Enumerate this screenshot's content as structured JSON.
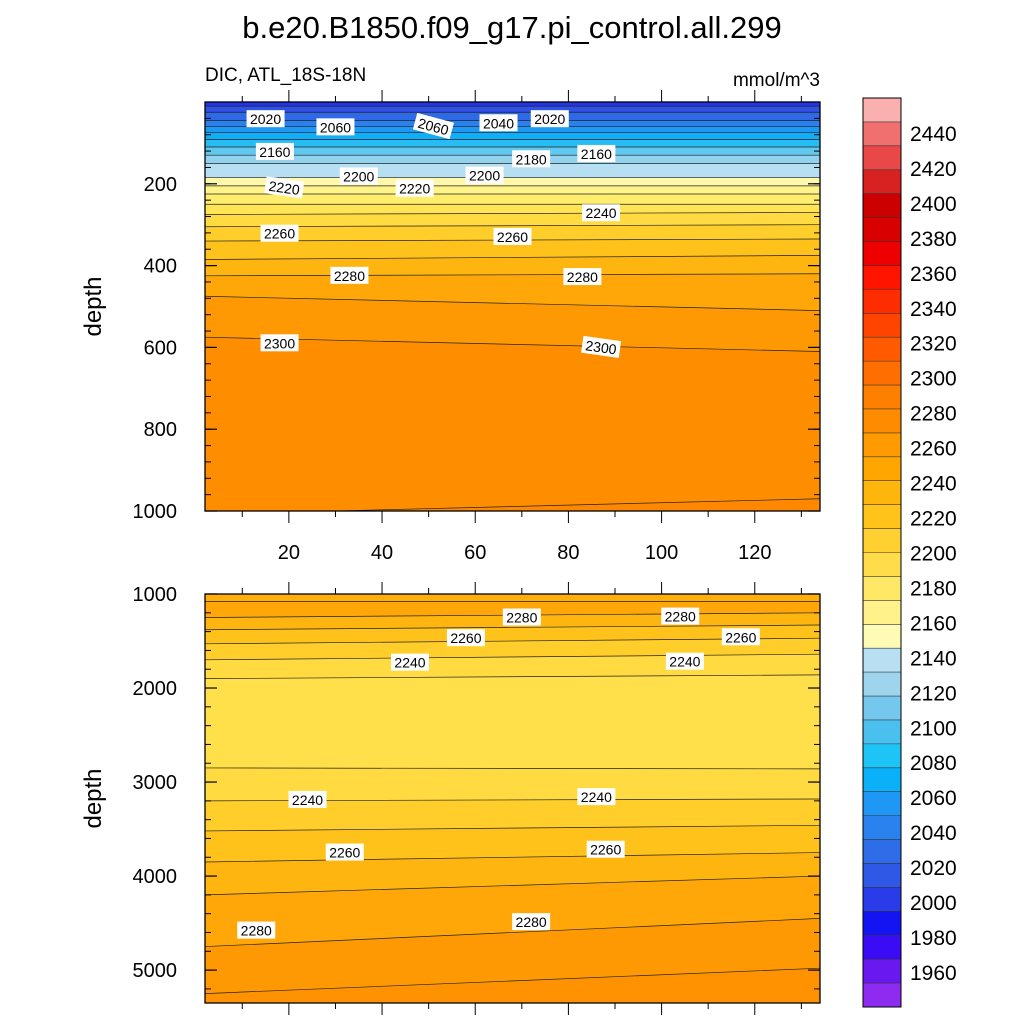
{
  "title": "b.e20.B1850.f09_g17.pi_control.all.299",
  "subtitle_left": "DIC, ATL_18S-18N",
  "subtitle_right": "mmol/m^3",
  "chart_data": [
    {
      "type": "contour",
      "panel": "upper",
      "ylabel": "depth",
      "xlim": [
        2,
        134
      ],
      "ylim": [
        1000,
        0
      ],
      "x_ticks": [
        20,
        40,
        60,
        80,
        100,
        120
      ],
      "y_ticks": [
        200,
        400,
        600,
        800,
        1000
      ],
      "contours": [
        {
          "level": 2020,
          "y": [
            10,
            10
          ]
        },
        {
          "level": 2040,
          "y": [
            25,
            25
          ]
        },
        {
          "level": 2060,
          "y": [
            45,
            45
          ]
        },
        {
          "level": 2080,
          "y": [
            60,
            60
          ]
        },
        {
          "level": 2100,
          "y": [
            75,
            75
          ]
        },
        {
          "level": 2120,
          "y": [
            92,
            92
          ]
        },
        {
          "level": 2140,
          "y": [
            110,
            110
          ]
        },
        {
          "level": 2160,
          "y": [
            130,
            130
          ]
        },
        {
          "level": 2180,
          "y": [
            150,
            150
          ]
        },
        {
          "level": 2200,
          "y": [
            185,
            185
          ]
        },
        {
          "level": 2210,
          "y": [
            205,
            205
          ]
        },
        {
          "level": 2220,
          "y": [
            225,
            225
          ]
        },
        {
          "level": 2230,
          "y": [
            250,
            250
          ]
        },
        {
          "level": 2240,
          "y": [
            275,
            270
          ]
        },
        {
          "level": 2250,
          "y": [
            305,
            300
          ]
        },
        {
          "level": 2260,
          "y": [
            340,
            335
          ]
        },
        {
          "level": 2270,
          "y": [
            385,
            375
          ]
        },
        {
          "level": 2280,
          "y": [
            425,
            420
          ]
        },
        {
          "level": 2290,
          "y": [
            475,
            510
          ]
        },
        {
          "level": 2300,
          "y": [
            575,
            610
          ]
        },
        {
          "level": 2310,
          "y": [
            1008,
            970
          ]
        }
      ],
      "labels": [
        {
          "text": "2020",
          "x": 15,
          "y": 42,
          "angle": 0
        },
        {
          "text": "2060",
          "x": 30,
          "y": 62,
          "angle": 0
        },
        {
          "text": "2060",
          "x": 51,
          "y": 60,
          "angle": 15
        },
        {
          "text": "2040",
          "x": 65,
          "y": 52,
          "angle": 0
        },
        {
          "text": "2020",
          "x": 76,
          "y": 42,
          "angle": 0
        },
        {
          "text": "2160",
          "x": 17,
          "y": 122,
          "angle": 0
        },
        {
          "text": "2180",
          "x": 72,
          "y": 140,
          "angle": 0
        },
        {
          "text": "2160",
          "x": 86,
          "y": 127,
          "angle": 0
        },
        {
          "text": "2200",
          "x": 35,
          "y": 182,
          "angle": 0
        },
        {
          "text": "2200",
          "x": 62,
          "y": 180,
          "angle": 0
        },
        {
          "text": "2220",
          "x": 19,
          "y": 210,
          "angle": 8
        },
        {
          "text": "2220",
          "x": 47,
          "y": 212,
          "angle": 0
        },
        {
          "text": "2240",
          "x": 87,
          "y": 272,
          "angle": 0
        },
        {
          "text": "2260",
          "x": 18,
          "y": 322,
          "angle": 0
        },
        {
          "text": "2260",
          "x": 68,
          "y": 330,
          "angle": 0
        },
        {
          "text": "2280",
          "x": 33,
          "y": 425,
          "angle": 0
        },
        {
          "text": "2280",
          "x": 83,
          "y": 428,
          "angle": 0
        },
        {
          "text": "2300",
          "x": 18,
          "y": 590,
          "angle": 0
        },
        {
          "text": "2300",
          "x": 87,
          "y": 600,
          "angle": 8
        }
      ]
    },
    {
      "type": "contour",
      "panel": "lower",
      "ylabel": "depth",
      "xlim": [
        2,
        134
      ],
      "ylim": [
        5350,
        1000
      ],
      "y_ticks": [
        1000,
        2000,
        3000,
        4000,
        5000
      ],
      "contours": [
        {
          "level": 2290,
          "y": [
            1080,
            1080
          ]
        },
        {
          "level": 2280,
          "y": [
            1250,
            1200
          ]
        },
        {
          "level": 2270,
          "y": [
            1380,
            1330
          ]
        },
        {
          "level": 2260,
          "y": [
            1530,
            1470
          ]
        },
        {
          "level": 2250,
          "y": [
            1700,
            1640
          ]
        },
        {
          "level": 2240,
          "y": [
            1900,
            1860
          ]
        },
        {
          "level": 2240,
          "y": [
            2850,
            2860
          ]
        },
        {
          "level": 2250,
          "y": [
            3200,
            3180
          ]
        },
        {
          "level": 2260,
          "y": [
            3520,
            3460
          ]
        },
        {
          "level": 2270,
          "y": [
            3850,
            3750
          ]
        },
        {
          "level": 2280,
          "y": [
            4200,
            4000
          ]
        },
        {
          "level": 2290,
          "y": [
            4750,
            4450
          ]
        },
        {
          "level": 2300,
          "y": [
            5250,
            4980
          ]
        }
      ],
      "labels": [
        {
          "text": "2280",
          "x": 70,
          "y": 1250,
          "angle": 0
        },
        {
          "text": "2280",
          "x": 104,
          "y": 1240,
          "angle": 0
        },
        {
          "text": "2260",
          "x": 58,
          "y": 1470,
          "angle": 0
        },
        {
          "text": "2260",
          "x": 117,
          "y": 1460,
          "angle": 0
        },
        {
          "text": "2240",
          "x": 46,
          "y": 1730,
          "angle": 0
        },
        {
          "text": "2240",
          "x": 105,
          "y": 1720,
          "angle": 0
        },
        {
          "text": "2240",
          "x": 24,
          "y": 3190,
          "angle": 0
        },
        {
          "text": "2240",
          "x": 86,
          "y": 3160,
          "angle": 0
        },
        {
          "text": "2260",
          "x": 32,
          "y": 3750,
          "angle": 0
        },
        {
          "text": "2260",
          "x": 88,
          "y": 3720,
          "angle": 0
        },
        {
          "text": "2280",
          "x": 13,
          "y": 4580,
          "angle": 0
        },
        {
          "text": "2280",
          "x": 72,
          "y": 4490,
          "angle": 0
        }
      ]
    }
  ],
  "colorbar": {
    "levels": [
      1960,
      1980,
      2000,
      2020,
      2040,
      2060,
      2080,
      2100,
      2120,
      2140,
      2160,
      2180,
      2200,
      2220,
      2240,
      2260,
      2280,
      2300,
      2320,
      2340,
      2360,
      2380,
      2400,
      2420,
      2440
    ],
    "colors": [
      "#8e2bf0",
      "#6a18f0",
      "#3a0cf6",
      "#1414f2",
      "#2a3bea",
      "#2f58e6",
      "#2f6de8",
      "#2a82ee",
      "#1e98f4",
      "#0ab0f8",
      "#1ec4f6",
      "#4ac0ef",
      "#74c8ee",
      "#9ed4ee",
      "#b8dff2",
      "#fdfbb4",
      "#fff28a",
      "#ffe866",
      "#ffdd4a",
      "#ffd030",
      "#ffc31a",
      "#ffb60c",
      "#ffa600",
      "#ff9a00",
      "#ff8c00",
      "#ff7f00",
      "#ff6e00",
      "#ff5a00",
      "#ff4400",
      "#ff2c00",
      "#ff1400",
      "#ee0000",
      "#d80000",
      "#cc0000",
      "#d82222",
      "#e84848",
      "#f07070",
      "#fbb0b0"
    ]
  }
}
